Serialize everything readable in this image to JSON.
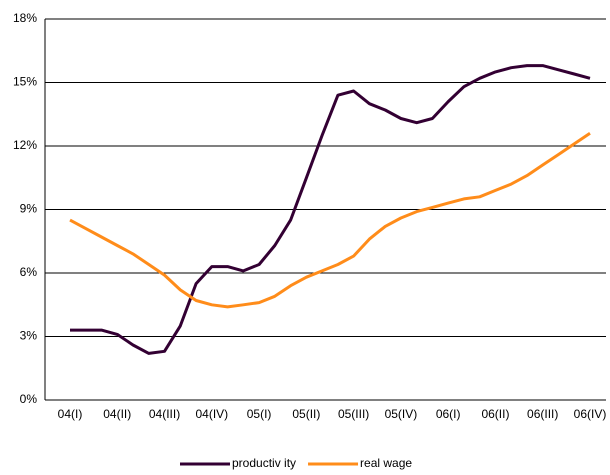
{
  "chart_data": {
    "type": "line",
    "categories": [
      "04(I)",
      null,
      null,
      "04(II)",
      null,
      null,
      "04(III)",
      null,
      null,
      "04(IV)",
      null,
      null,
      "05(I)",
      null,
      null,
      "05(II)",
      null,
      null,
      "05(III)",
      null,
      null,
      "05(IV)",
      null,
      null,
      "06(I)",
      null,
      null,
      "06(II)",
      null,
      null,
      "06(III)",
      null,
      null,
      "06(IV)"
    ],
    "series": [
      {
        "name": "productiv ity",
        "color": "#330033",
        "values": [
          3.3,
          3.3,
          3.3,
          3.1,
          2.6,
          2.2,
          2.3,
          3.5,
          5.5,
          6.3,
          6.3,
          6.1,
          6.4,
          7.3,
          8.5,
          10.5,
          12.5,
          14.4,
          14.6,
          14.0,
          13.7,
          13.3,
          13.1,
          13.3,
          14.1,
          14.8,
          15.2,
          15.5,
          15.7,
          15.8,
          15.8,
          15.6,
          15.4,
          15.2
        ]
      },
      {
        "name": "real wage",
        "color": "#ff8c1a",
        "values": [
          8.5,
          8.1,
          7.7,
          7.3,
          6.9,
          6.4,
          5.9,
          5.2,
          4.7,
          4.5,
          4.4,
          4.5,
          4.6,
          4.9,
          5.4,
          5.8,
          6.1,
          6.4,
          6.8,
          7.6,
          8.2,
          8.6,
          8.9,
          9.1,
          9.3,
          9.5,
          9.6,
          9.9,
          10.2,
          10.6,
          11.1,
          11.6,
          12.1,
          12.6
        ]
      }
    ],
    "ylim": [
      0,
      18
    ],
    "yticks": [
      {
        "value": 0,
        "label": "0%"
      },
      {
        "value": 3,
        "label": "3%"
      },
      {
        "value": 6,
        "label": "6%"
      },
      {
        "value": 9,
        "label": "9%"
      },
      {
        "value": 12,
        "label": "12%"
      },
      {
        "value": 15,
        "label": "15%"
      },
      {
        "value": 18,
        "label": "18%"
      }
    ],
    "grid": true,
    "legend": "bottom"
  }
}
